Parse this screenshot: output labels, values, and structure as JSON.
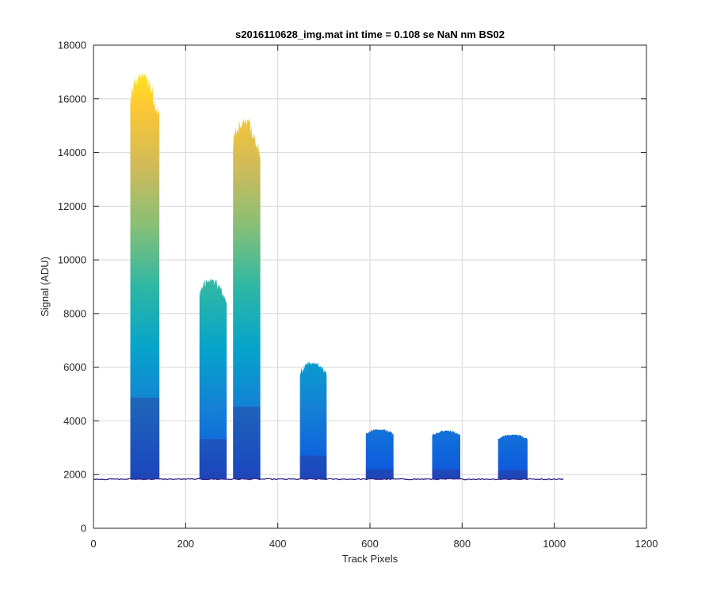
{
  "chart_data": {
    "type": "area",
    "title": "s2016110628_img.mat int time = 0.108 se  NaN nm BS02",
    "xlabel": "Track Pixels",
    "ylabel": "Signal (ADU)",
    "xlim": [
      0,
      1200
    ],
    "ylim": [
      0,
      18000
    ],
    "xticks": [
      0,
      200,
      400,
      600,
      800,
      1000,
      1200
    ],
    "yticks": [
      0,
      2000,
      4000,
      6000,
      8000,
      10000,
      12000,
      14000,
      16000,
      18000
    ],
    "grid": true,
    "colormap": [
      "#352a87",
      "#0f5cdd",
      "#1481d6",
      "#06a4ca",
      "#2eb7a4",
      "#87bf77",
      "#d1bb59",
      "#fec832",
      "#f9fb0e"
    ],
    "baseline": 1830,
    "x_range": [
      0,
      1023
    ],
    "peaks": [
      {
        "x_start": 80,
        "x_end": 143,
        "peak": 17000
      },
      {
        "x_start": 230,
        "x_end": 289,
        "peak": 9300
      },
      {
        "x_start": 303,
        "x_end": 362,
        "peak": 15300
      },
      {
        "x_start": 448,
        "x_end": 506,
        "peak": 6200
      },
      {
        "x_start": 591,
        "x_end": 651,
        "peak": 3700
      },
      {
        "x_start": 735,
        "x_end": 796,
        "peak": 3650
      },
      {
        "x_start": 878,
        "x_end": 942,
        "peak": 3500
      }
    ]
  }
}
